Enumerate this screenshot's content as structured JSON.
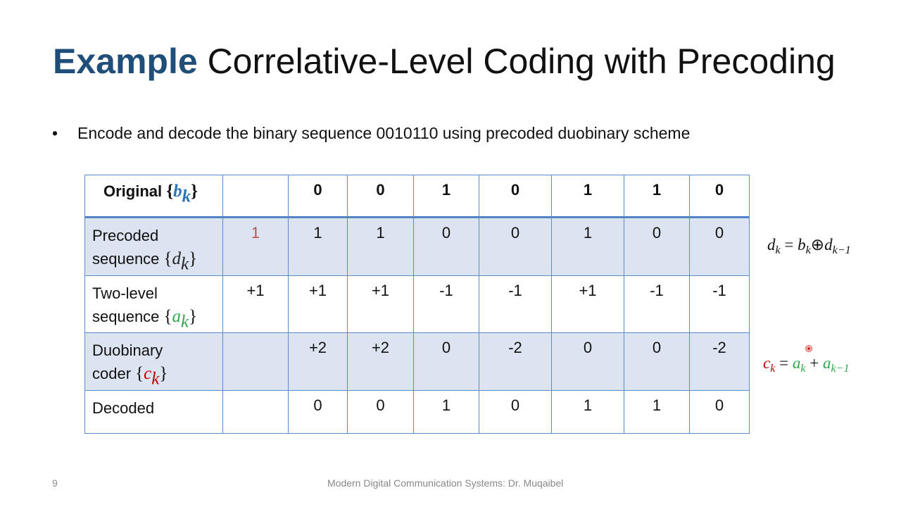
{
  "slide": {
    "title": {
      "highlight": "Example",
      "rest": "Correlative-Level Coding with Precoding"
    },
    "bullet": "Encode and decode the binary sequence 0010110 using precoded duobinary scheme",
    "table": {
      "rows": [
        {
          "label": [
            "Original"
          ],
          "open": "{",
          "var": "b",
          "sub": "k",
          "close": "}",
          "var_color": "#2e75b6",
          "header": true,
          "cells": [
            null,
            "0",
            "0",
            "1",
            "0",
            "1",
            "1",
            "0"
          ]
        },
        {
          "label": [
            "Precoded",
            "sequence"
          ],
          "open": "{",
          "var": "d",
          "sub": "k",
          "close": "}",
          "var_color": "#222222",
          "shaded": true,
          "first_cell_color": "#c0504d",
          "cells": [
            "1",
            "1",
            "1",
            "0",
            "0",
            "1",
            "0",
            "0"
          ]
        },
        {
          "label": [
            "Two-level",
            "sequence"
          ],
          "open": "{",
          "var": "a",
          "sub": "k",
          "close": "}",
          "var_color": "#2fa84f",
          "cells": [
            "+1",
            "+1",
            "+1",
            "-1",
            "-1",
            "+1",
            "-1",
            "-1"
          ]
        },
        {
          "label": [
            "Duobinary",
            "coder"
          ],
          "open": "{",
          "var": "c",
          "sub": "k",
          "close": "}",
          "var_color": "#c00000",
          "shaded": true,
          "cells": [
            null,
            "+2",
            "+2",
            "0",
            "-2",
            "0",
            "0",
            "-2"
          ]
        },
        {
          "label": [
            "Decoded"
          ],
          "cells": [
            null,
            "0",
            "0",
            "1",
            "0",
            "1",
            "1",
            "0"
          ]
        }
      ]
    },
    "formulas": [
      {
        "parts": [
          {
            "t": "d",
            "sub": "k"
          },
          {
            "t": " = "
          },
          {
            "t": "b",
            "sub": "k"
          },
          {
            "t": "⊕"
          },
          {
            "t": "d",
            "sub": "k−1"
          }
        ]
      },
      {
        "parts": [
          {
            "t": "c",
            "sub": "k",
            "color": "#c00000"
          },
          {
            "t": " = "
          },
          {
            "t": "a",
            "sub": "k",
            "color": "#2fa84f"
          },
          {
            "t": " + "
          },
          {
            "t": "a",
            "sub": "k−1",
            "color": "#2fa84f"
          }
        ]
      }
    ],
    "footer": {
      "page": "9",
      "text": "Modern Digital Communication Systems: Dr. Muqaibel"
    }
  }
}
